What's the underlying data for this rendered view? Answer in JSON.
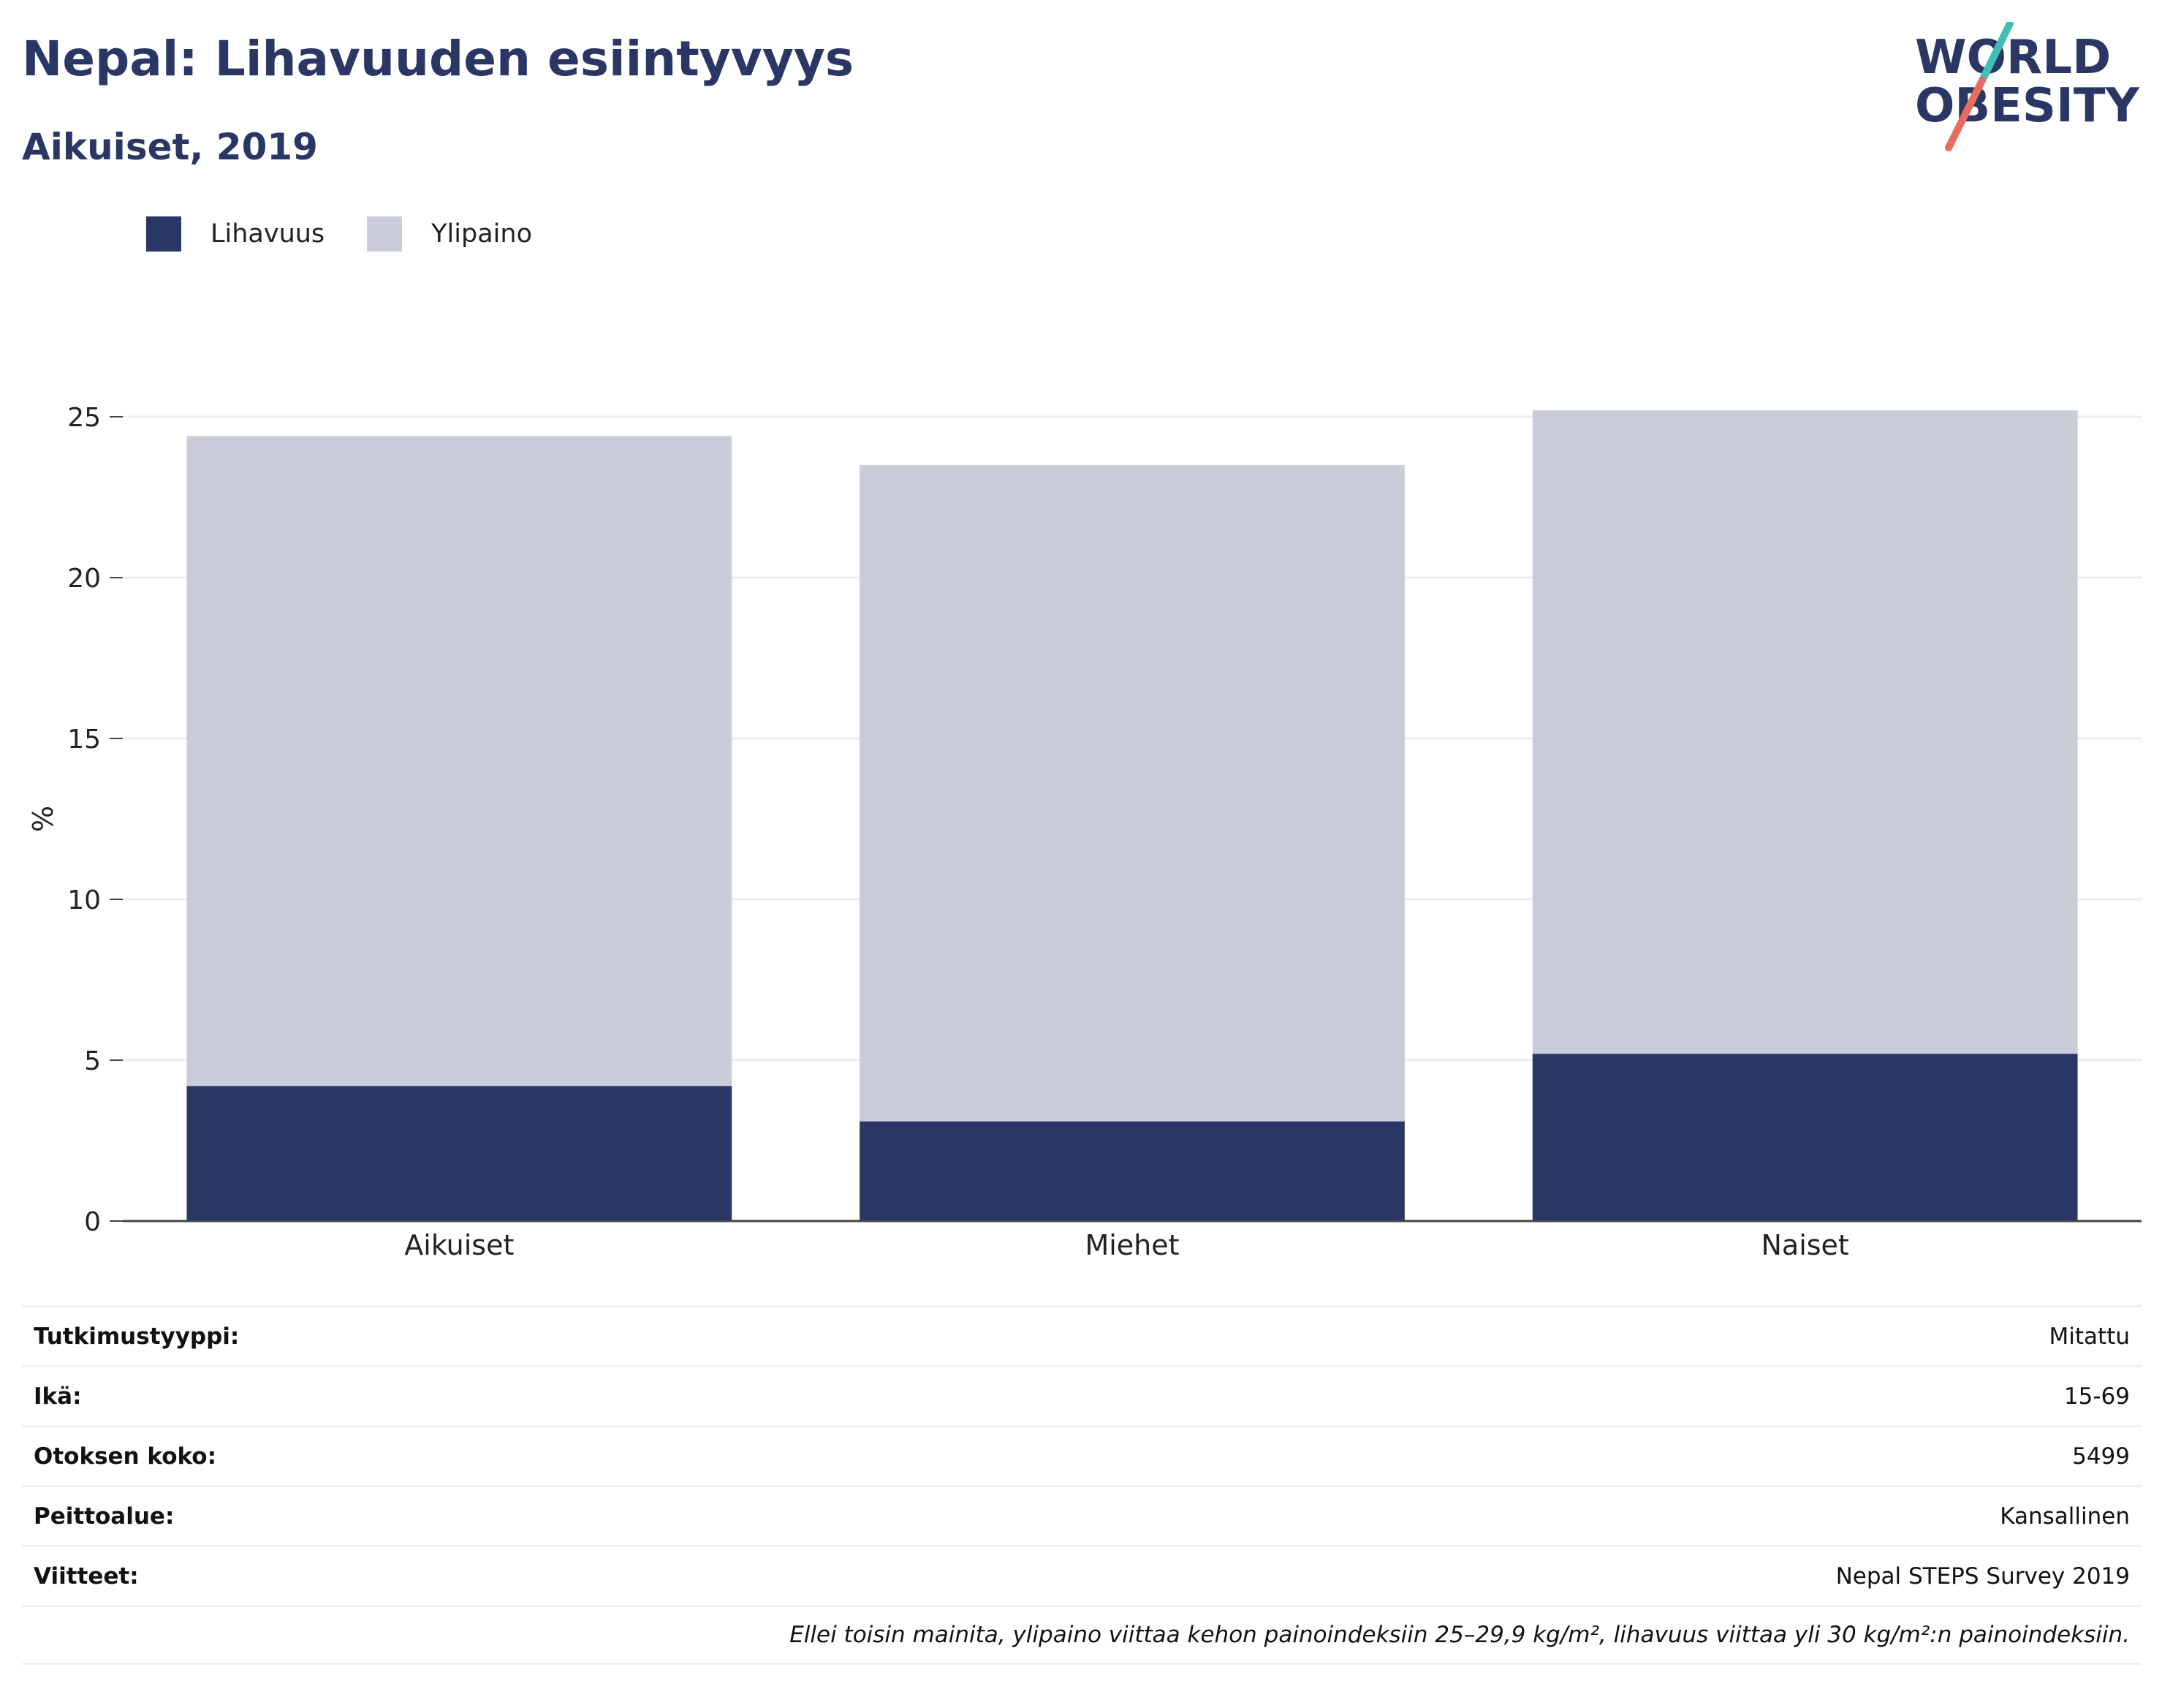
{
  "title": "Nepal: Lihavuuden esiintyvyys",
  "subtitle": "Aikuiset, 2019",
  "logo": {
    "line1": "WORLD",
    "line2": "OBESITY",
    "name": "world-obesity-logo"
  },
  "colors": {
    "obesity": "#2a3765",
    "overweight": "#cacdd9",
    "grid": "#ececf1",
    "axis": "#444444"
  },
  "chart_data": {
    "type": "bar",
    "stacked": true,
    "categories": [
      "Aikuiset",
      "Miehet",
      "Naiset"
    ],
    "series": [
      {
        "name": "Lihavuus",
        "values": [
          4.2,
          3.1,
          5.2
        ]
      },
      {
        "name": "Ylipaino",
        "values": [
          20.2,
          20.4,
          20.0
        ]
      }
    ],
    "title": "Nepal: Lihavuuden esiintyvyys",
    "subtitle": "Aikuiset, 2019",
    "xlabel": "",
    "ylabel": "%",
    "ylim": [
      0,
      25
    ],
    "yticks": [
      "0",
      "5",
      "10",
      "15",
      "20",
      "25"
    ],
    "grid": true,
    "legend": "top-left"
  },
  "meta": [
    {
      "label": "Tutkimustyyppi:",
      "value": "Mitattu"
    },
    {
      "label": "Ikä:",
      "value": "15-69"
    },
    {
      "label": "Otoksen koko:",
      "value": "5499"
    },
    {
      "label": "Peittoalue:",
      "value": "Kansallinen"
    },
    {
      "label": "Viitteet:",
      "value": "Nepal STEPS Survey 2019"
    }
  ],
  "note": "Ellei toisin mainita, ylipaino viittaa kehon painoindeksiin 25–29,9 kg/m², lihavuus viittaa yli 30 kg/m²:n painoindeksiin."
}
